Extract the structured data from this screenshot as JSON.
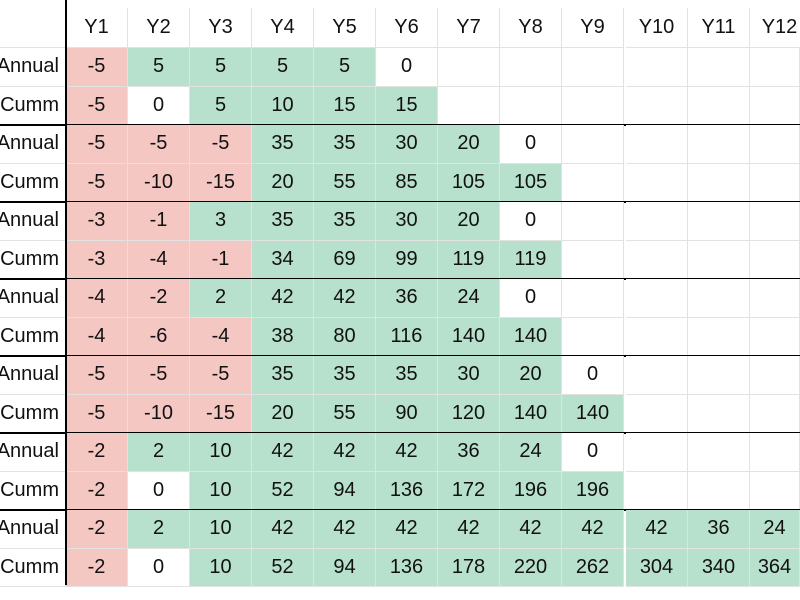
{
  "columns": [
    "Y1",
    "Y2",
    "Y3",
    "Y4",
    "Y5",
    "Y6",
    "Y7",
    "Y8",
    "Y9",
    "Y10",
    "Y11",
    "Y12"
  ],
  "rows": [
    {
      "label": "Annual",
      "values": [
        "-5",
        "5",
        "5",
        "5",
        "5",
        "0"
      ],
      "styles": [
        "n",
        "p",
        "p",
        "p",
        "p",
        "w"
      ]
    },
    {
      "label": "Cumm",
      "values": [
        "-5",
        "0",
        "5",
        "10",
        "15",
        "15"
      ],
      "styles": [
        "n",
        "w",
        "p",
        "p",
        "p",
        "p"
      ]
    },
    {
      "label": "Annual",
      "values": [
        "-5",
        "-5",
        "-5",
        "35",
        "35",
        "30",
        "20",
        "0"
      ],
      "styles": [
        "n",
        "n",
        "n",
        "p",
        "p",
        "p",
        "p",
        "w"
      ]
    },
    {
      "label": "Cumm",
      "values": [
        "-5",
        "-10",
        "-15",
        "20",
        "55",
        "85",
        "105",
        "105"
      ],
      "styles": [
        "n",
        "n",
        "n",
        "p",
        "p",
        "p",
        "p",
        "p"
      ]
    },
    {
      "label": "Annual",
      "values": [
        "-3",
        "-1",
        "3",
        "35",
        "35",
        "30",
        "20",
        "0"
      ],
      "styles": [
        "n",
        "n",
        "p",
        "p",
        "p",
        "p",
        "p",
        "w"
      ]
    },
    {
      "label": "Cumm",
      "values": [
        "-3",
        "-4",
        "-1",
        "34",
        "69",
        "99",
        "119",
        "119"
      ],
      "styles": [
        "n",
        "n",
        "n",
        "p",
        "p",
        "p",
        "p",
        "p"
      ]
    },
    {
      "label": "Annual",
      "values": [
        "-4",
        "-2",
        "2",
        "42",
        "42",
        "36",
        "24",
        "0"
      ],
      "styles": [
        "n",
        "n",
        "p",
        "p",
        "p",
        "p",
        "p",
        "w"
      ]
    },
    {
      "label": "Cumm",
      "values": [
        "-4",
        "-6",
        "-4",
        "38",
        "80",
        "116",
        "140",
        "140"
      ],
      "styles": [
        "n",
        "n",
        "n",
        "p",
        "p",
        "p",
        "p",
        "p"
      ]
    },
    {
      "label": "Annual",
      "values": [
        "-5",
        "-5",
        "-5",
        "35",
        "35",
        "35",
        "30",
        "20",
        "0"
      ],
      "styles": [
        "n",
        "n",
        "n",
        "p",
        "p",
        "p",
        "p",
        "p",
        "w"
      ]
    },
    {
      "label": "Cumm",
      "values": [
        "-5",
        "-10",
        "-15",
        "20",
        "55",
        "90",
        "120",
        "140",
        "140"
      ],
      "styles": [
        "n",
        "n",
        "n",
        "p",
        "p",
        "p",
        "p",
        "p",
        "p"
      ]
    },
    {
      "label": "Annual",
      "values": [
        "-2",
        "2",
        "10",
        "42",
        "42",
        "42",
        "36",
        "24",
        "0"
      ],
      "styles": [
        "n",
        "p",
        "p",
        "p",
        "p",
        "p",
        "p",
        "p",
        "w"
      ]
    },
    {
      "label": "Cumm",
      "values": [
        "-2",
        "0",
        "10",
        "52",
        "94",
        "136",
        "172",
        "196",
        "196"
      ],
      "styles": [
        "n",
        "w",
        "p",
        "p",
        "p",
        "p",
        "p",
        "p",
        "p"
      ]
    },
    {
      "label": "Annual",
      "values": [
        "-2",
        "2",
        "10",
        "42",
        "42",
        "42",
        "42",
        "42",
        "42",
        "42",
        "36",
        "24"
      ],
      "styles": [
        "n",
        "p",
        "p",
        "p",
        "p",
        "p",
        "p",
        "p",
        "p",
        "p",
        "p",
        "p"
      ]
    },
    {
      "label": "Cumm",
      "values": [
        "-2",
        "0",
        "10",
        "52",
        "94",
        "136",
        "178",
        "220",
        "262",
        "304",
        "340",
        "364"
      ],
      "styles": [
        "n",
        "w",
        "p",
        "p",
        "p",
        "p",
        "p",
        "p",
        "p",
        "p",
        "p",
        "p"
      ]
    }
  ],
  "colors": {
    "negative": "#f4c7c3",
    "positive": "#b7e1cd"
  }
}
